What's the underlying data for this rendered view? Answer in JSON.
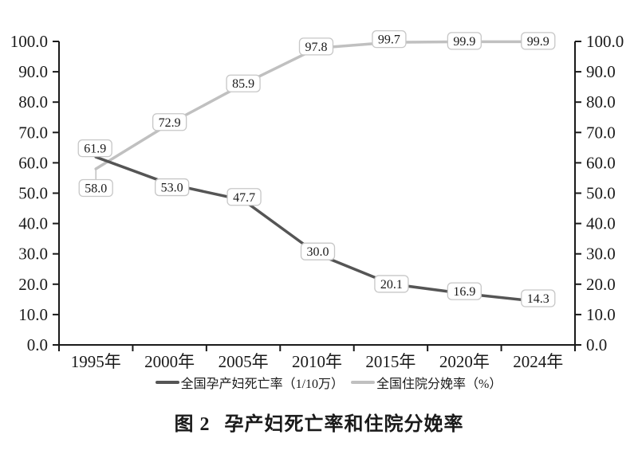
{
  "chart_data": {
    "type": "line",
    "categories": [
      "1995年",
      "2000年",
      "2005年",
      "2010年",
      "2015年",
      "2020年",
      "2024年"
    ],
    "series": [
      {
        "name": "全国孕产妇死亡率（1/10万）",
        "values": [
          61.9,
          53.0,
          47.7,
          30.0,
          20.1,
          16.9,
          14.3
        ],
        "color": "#555555",
        "label_offsets": [
          [
            -1,
            -11
          ],
          [
            3,
            4
          ],
          [
            1,
            -4
          ],
          [
            1,
            -3
          ],
          [
            1,
            0
          ],
          [
            0,
            -3
          ],
          [
            0,
            -4
          ]
        ],
        "leader_points": []
      },
      {
        "name": "全国住院分娩率（%）",
        "values": [
          58.0,
          72.9,
          85.9,
          97.8,
          99.7,
          99.9,
          99.9
        ],
        "color": "#c0c0c0",
        "label_offsets": [
          [
            0,
            24
          ],
          [
            0,
            -2
          ],
          [
            0,
            -1
          ],
          [
            -1,
            -2
          ],
          [
            -2,
            -4
          ],
          [
            0,
            -1
          ],
          [
            0,
            -1
          ]
        ],
        "leader_points": [
          0
        ]
      }
    ],
    "y_axis": {
      "min": 0,
      "max": 100,
      "step": 10,
      "decimals": 1
    },
    "dual_axis": true,
    "grid": false,
    "legend_position": "bottom",
    "data_label_boxes": true
  },
  "caption": {
    "figure_label": "图 2",
    "title": "孕产妇死亡率和住院分娩率"
  },
  "styles": {
    "axis_color": "#1a1a1a",
    "text_color": "#1a1a1a",
    "label_box_fill": "#ffffff",
    "label_box_border": "#c7c7c7",
    "background": "#ffffff"
  }
}
